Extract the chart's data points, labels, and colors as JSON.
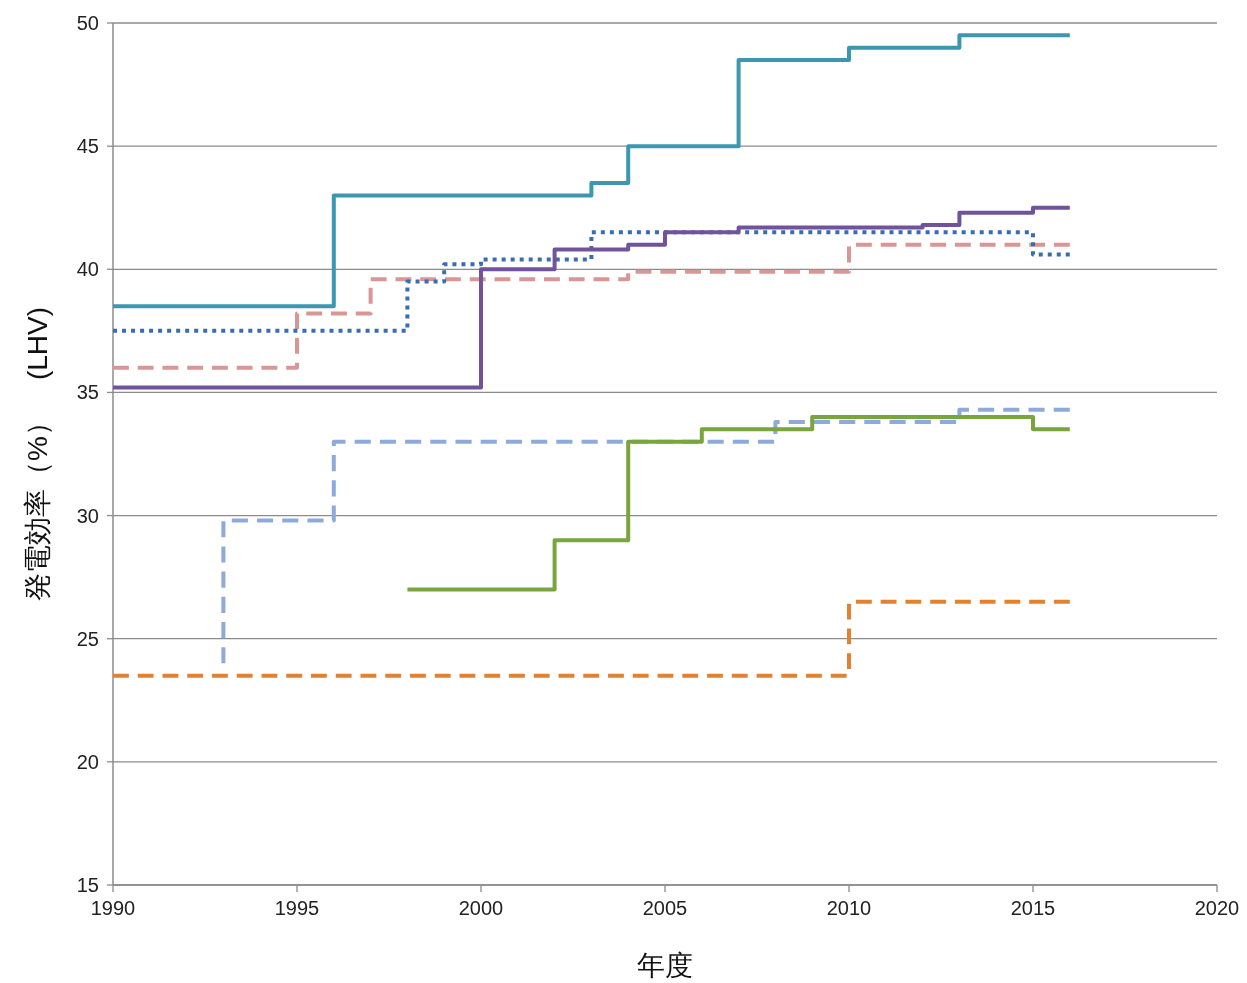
{
  "chart_data": {
    "type": "step",
    "xlabel": "年度",
    "ylabel": "発電効率（%）　(LHV)",
    "xlim": [
      1990,
      2020
    ],
    "xticks": [
      1990,
      1995,
      2000,
      2005,
      2010,
      2015,
      2020
    ],
    "ylim": [
      15,
      50
    ],
    "yticks": [
      15,
      20,
      25,
      30,
      35,
      40,
      45,
      50
    ],
    "grid": "y",
    "series": [
      {
        "color": "#3c98b0",
        "line_style": "solid",
        "x": [
          1990,
          1996,
          2003,
          2004,
          2007,
          2010,
          2013,
          2016
        ],
        "values": [
          38.5,
          43,
          43.5,
          45,
          48.5,
          49,
          49.5,
          49.5
        ]
      },
      {
        "color": "#d99694",
        "line_style": "dashed",
        "x": [
          1990,
          1995,
          1997,
          2004,
          2010,
          2016
        ],
        "values": [
          36,
          38.2,
          39.6,
          39.9,
          41,
          41
        ]
      },
      {
        "color": "#3a6db0",
        "line_style": "dotted",
        "x": [
          1990,
          1998,
          1999,
          2000,
          2003,
          2015,
          2016
        ],
        "values": [
          37.5,
          39.5,
          40.2,
          40.4,
          41.5,
          40.6,
          40.6
        ]
      },
      {
        "color": "#71539c",
        "line_style": "solid",
        "x": [
          1990,
          2000,
          2002,
          2004,
          2005,
          2007,
          2012,
          2013,
          2015,
          2016
        ],
        "values": [
          35.2,
          40,
          40.8,
          41,
          41.5,
          41.7,
          41.8,
          42.3,
          42.5,
          42.5
        ]
      },
      {
        "color": "#8eaadb",
        "line_style": "dashed",
        "x": [
          1993,
          1993,
          1996,
          2008,
          2013,
          2016
        ],
        "values": [
          24,
          29.8,
          33,
          33.8,
          34.3,
          34.3
        ]
      },
      {
        "color": "#78a53e",
        "line_style": "solid",
        "x": [
          1998,
          2002,
          2004,
          2006,
          2009,
          2015,
          2016
        ],
        "values": [
          27,
          29,
          33,
          33.5,
          34,
          33.5,
          33.5
        ]
      },
      {
        "color": "#e2812f",
        "line_style": "dashed",
        "x": [
          1990,
          2010,
          2016
        ],
        "values": [
          23.5,
          26.5,
          26.5
        ]
      }
    ]
  }
}
